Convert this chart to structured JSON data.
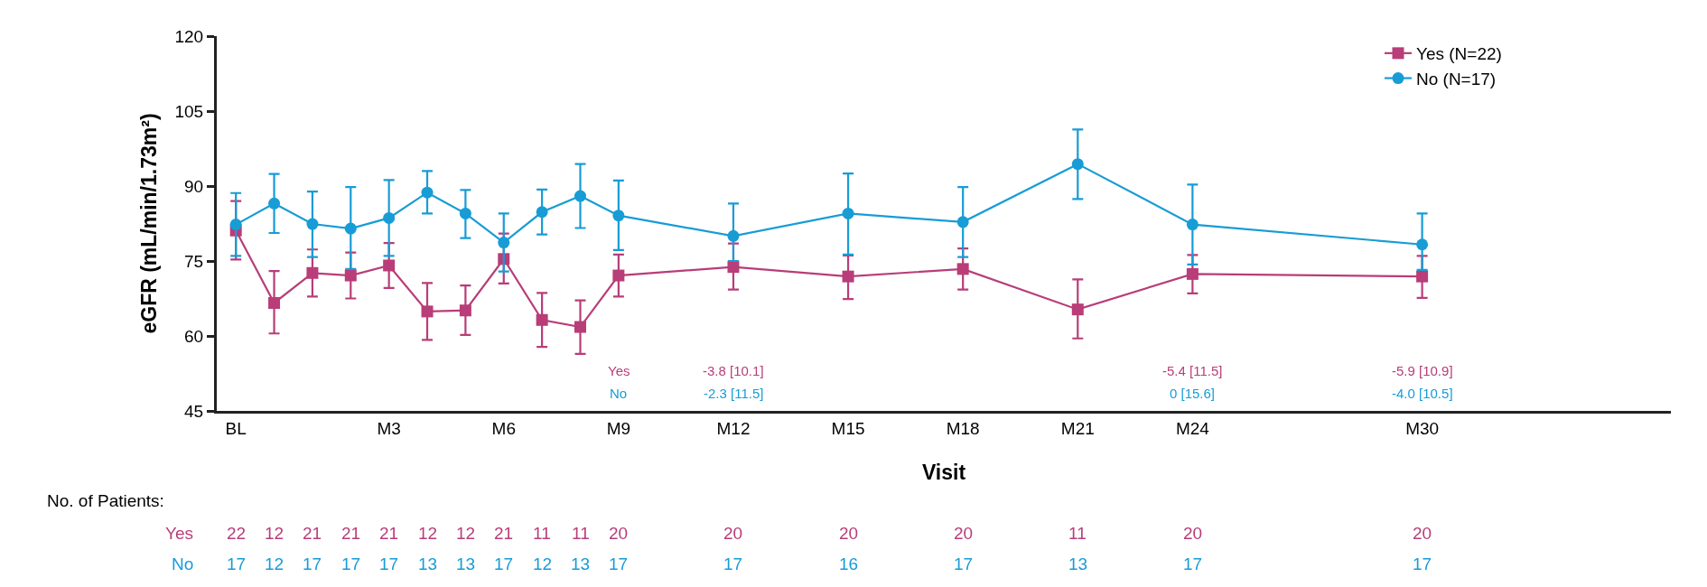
{
  "chart_data": {
    "type": "line",
    "xlabel": "Visit",
    "ylabel": "eGFR (mL/min/1.73m²)",
    "categories": [
      "BL",
      null,
      null,
      null,
      "M3",
      null,
      null,
      "M6",
      null,
      null,
      "M9",
      null,
      null,
      "M12",
      null,
      null,
      "M15",
      null,
      null,
      "M18",
      null,
      null,
      "M21",
      null,
      null,
      "M24",
      null,
      null,
      null,
      null,
      null,
      "M30",
      null,
      null,
      null,
      null,
      null,
      null
    ],
    "series": [
      {
        "name": "Yes (N=22)",
        "color": "#b83d78",
        "marker": "square",
        "values": [
          81.1,
          66.6,
          72.6,
          72.1,
          74.1,
          64.9,
          65.1,
          75.4,
          63.2,
          61.8,
          72.1,
          null,
          null,
          73.8,
          null,
          null,
          71.9,
          null,
          null,
          73.4,
          null,
          null,
          65.3,
          null,
          null,
          72.4,
          null,
          null,
          null,
          null,
          null,
          71.9,
          null,
          null,
          null,
          null,
          null,
          null
        ],
        "errors": [
          [
            75.3,
            87.0
          ],
          [
            60.5,
            73.0
          ],
          [
            67.9,
            77.3
          ],
          [
            67.5,
            76.7
          ],
          [
            69.6,
            78.6
          ],
          [
            59.2,
            70.6
          ],
          [
            60.2,
            70.1
          ],
          [
            70.5,
            80.5
          ],
          [
            57.8,
            68.6
          ],
          [
            56.4,
            67.1
          ],
          [
            67.9,
            76.3
          ],
          null,
          null,
          [
            69.3,
            78.5
          ],
          null,
          null,
          [
            67.4,
            76.1
          ],
          null,
          null,
          [
            69.3,
            77.5
          ],
          null,
          null,
          [
            59.5,
            71.3
          ],
          null,
          null,
          [
            68.5,
            76.2
          ],
          null,
          null,
          null,
          null,
          null,
          [
            67.6,
            76.0
          ],
          null,
          null,
          null,
          null,
          null,
          null
        ]
      },
      {
        "name": "No (N=17)",
        "color": "#179cd6",
        "marker": "circle",
        "values": [
          82.3,
          86.5,
          82.4,
          81.5,
          83.6,
          88.7,
          84.5,
          78.7,
          84.8,
          88.0,
          84.1,
          null,
          null,
          80.0,
          null,
          null,
          84.5,
          null,
          null,
          82.8,
          null,
          null,
          94.4,
          null,
          null,
          82.3,
          null,
          null,
          null,
          null,
          null,
          78.3,
          null,
          null,
          null,
          null,
          null,
          null
        ],
        "errors": [
          [
            76.0,
            88.6
          ],
          [
            80.6,
            92.4
          ],
          [
            75.8,
            88.9
          ],
          [
            73.4,
            89.8
          ],
          [
            76.0,
            91.2
          ],
          [
            84.5,
            93.0
          ],
          [
            79.6,
            89.2
          ],
          [
            72.9,
            84.5
          ],
          [
            80.3,
            89.3
          ],
          [
            81.6,
            94.4
          ],
          [
            77.2,
            91.1
          ],
          null,
          null,
          [
            75.0,
            86.5
          ],
          null,
          null,
          [
            76.3,
            92.5
          ],
          null,
          null,
          [
            75.8,
            89.8
          ],
          null,
          null,
          [
            87.4,
            101.3
          ],
          null,
          null,
          [
            74.3,
            90.3
          ],
          null,
          null,
          null,
          null,
          null,
          [
            73.2,
            84.5
          ],
          null,
          null,
          null,
          null,
          null,
          null
        ]
      }
    ],
    "ylim": [
      45,
      120
    ],
    "yticks": [
      45,
      60,
      75,
      90,
      105,
      120
    ],
    "legend": "top right",
    "annotations": [
      "No. of Patients:",
      "Yes",
      "22",
      "12",
      "21",
      "21",
      "21",
      "12",
      "12",
      "21",
      "11",
      "11",
      "20",
      "20",
      "20",
      "20",
      "11",
      "20",
      "20",
      "No",
      "17",
      "12",
      "17",
      "17",
      "17",
      "13",
      "13",
      "17",
      "12",
      "13",
      "17",
      "17",
      "16",
      "17",
      "13",
      "17",
      "17",
      "Yes",
      "No",
      "-3.8 [10.1]",
      "-2.3 [11.5]",
      "-5.4 [11.5]",
      "0 [15.6]",
      "-5.9 [10.9]",
      "-4.0 [10.5]"
    ]
  }
}
